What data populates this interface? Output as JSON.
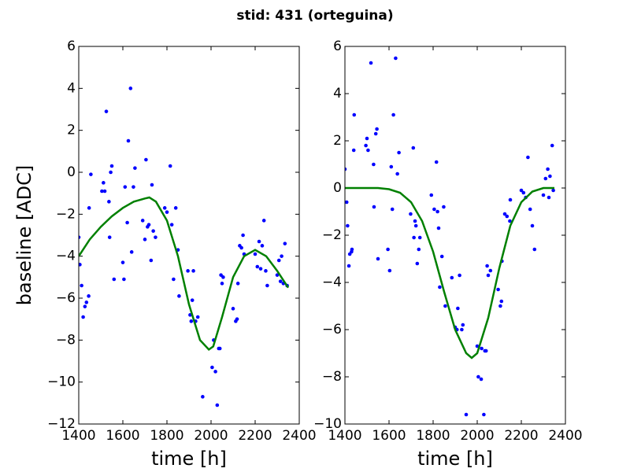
{
  "title": "stid: 431 (orteguina)",
  "chart_data": [
    {
      "type": "scatter",
      "xlabel": "time [h]",
      "ylabel": "baseline [ADC]",
      "xlim": [
        1400,
        2400
      ],
      "ylim": [
        -12,
        6
      ],
      "xticks": [
        1400,
        1600,
        1800,
        2000,
        2200,
        2400
      ],
      "yticks": [
        {
          "value": -12,
          "label": "−12"
        },
        {
          "value": -10,
          "label": "−10"
        },
        {
          "value": -8,
          "label": "−8"
        },
        {
          "value": -6,
          "label": "−6"
        },
        {
          "value": -4,
          "label": "−4"
        },
        {
          "value": -2,
          "label": "−2"
        },
        0,
        2,
        4,
        6
      ],
      "series": [
        {
          "type": "scatter",
          "color": "#0000ff",
          "x": [
            1400,
            1405,
            1413,
            1420,
            1428,
            1435,
            1445,
            1447,
            1455,
            1505,
            1512,
            1518,
            1525,
            1537,
            1540,
            1545,
            1550,
            1560,
            1600,
            1605,
            1610,
            1620,
            1625,
            1635,
            1640,
            1648,
            1655,
            1690,
            1700,
            1705,
            1712,
            1718,
            1728,
            1732,
            1738,
            1748,
            1790,
            1800,
            1815,
            1822,
            1830,
            1840,
            1850,
            1855,
            1895,
            1905,
            1910,
            1915,
            1920,
            1930,
            1940,
            1962,
            2005,
            2012,
            2020,
            2028,
            2035,
            2040,
            2045,
            2050,
            2055,
            2100,
            2112,
            2118,
            2122,
            2130,
            2138,
            2145,
            2150,
            2200,
            2210,
            2218,
            2225,
            2232,
            2240,
            2248,
            2255,
            2300,
            2308,
            2315,
            2320,
            2328,
            2335,
            2345
          ],
          "values": [
            -3.1,
            -4.4,
            -5.4,
            -6.9,
            -6.4,
            -6.2,
            -5.9,
            -1.7,
            -0.1,
            -0.9,
            -0.5,
            -0.9,
            2.9,
            -1.4,
            -3.1,
            0.0,
            0.3,
            -5.1,
            -4.3,
            -5.1,
            -0.7,
            -2.4,
            1.5,
            4.0,
            -3.8,
            -0.7,
            0.2,
            -2.3,
            -3.2,
            0.6,
            -2.6,
            -2.5,
            -4.2,
            -0.6,
            -2.8,
            -3.1,
            -1.7,
            -1.9,
            0.3,
            -2.5,
            -5.1,
            -1.7,
            -3.7,
            -5.9,
            -4.7,
            -6.8,
            -7.1,
            -6.1,
            -4.7,
            -7.1,
            -6.9,
            -10.7,
            -9.3,
            -8.0,
            -9.5,
            -11.1,
            -8.4,
            -8.4,
            -4.9,
            -5.3,
            -5.0,
            -6.5,
            -7.1,
            -7.0,
            -5.3,
            -3.5,
            -3.6,
            -3.0,
            -3.9,
            -3.9,
            -4.5,
            -3.3,
            -4.6,
            -3.5,
            -2.3,
            -4.7,
            -5.4,
            -4.9,
            -4.2,
            -5.2,
            -4.0,
            -5.3,
            -3.4,
            -5.4
          ]
        },
        {
          "type": "line",
          "color": "#008000",
          "x": [
            1400,
            1450,
            1500,
            1550,
            1600,
            1650,
            1700,
            1720,
            1750,
            1800,
            1850,
            1900,
            1950,
            1990,
            2010,
            2050,
            2100,
            2150,
            2200,
            2250,
            2300,
            2350
          ],
          "values": [
            -4.0,
            -3.2,
            -2.6,
            -2.1,
            -1.7,
            -1.4,
            -1.25,
            -1.2,
            -1.4,
            -2.3,
            -4.0,
            -6.3,
            -8.0,
            -8.45,
            -8.3,
            -6.9,
            -5.0,
            -4.0,
            -3.7,
            -4.0,
            -4.7,
            -5.5
          ]
        }
      ]
    },
    {
      "type": "scatter",
      "xlabel": "time [h]",
      "xlim": [
        1400,
        2400
      ],
      "ylim": [
        -10,
        6
      ],
      "xticks": [
        1400,
        1600,
        1800,
        2000,
        2200,
        2400
      ],
      "yticks": [
        {
          "value": -10,
          "label": "−10"
        },
        {
          "value": -8,
          "label": "−8"
        },
        {
          "value": -6,
          "label": "−6"
        },
        {
          "value": -4,
          "label": "−4"
        },
        {
          "value": -2,
          "label": "−2"
        },
        0,
        2,
        4,
        6
      ],
      "series": [
        {
          "type": "scatter",
          "color": "#0000ff",
          "x": [
            1400,
            1408,
            1412,
            1418,
            1422,
            1430,
            1432,
            1440,
            1442,
            1495,
            1500,
            1505,
            1518,
            1530,
            1532,
            1540,
            1545,
            1550,
            1595,
            1603,
            1610,
            1615,
            1620,
            1630,
            1638,
            1645,
            1698,
            1710,
            1713,
            1718,
            1722,
            1728,
            1735,
            1740,
            1792,
            1805,
            1815,
            1820,
            1825,
            1830,
            1840,
            1848,
            1855,
            1885,
            1900,
            1908,
            1912,
            1920,
            1930,
            1935,
            1950,
            2000,
            2005,
            2018,
            2020,
            2030,
            2035,
            2040,
            2045,
            2050,
            2060,
            2095,
            2105,
            2110,
            2112,
            2125,
            2135,
            2148,
            2150,
            2200,
            2210,
            2220,
            2230,
            2240,
            2250,
            2260,
            2300,
            2310,
            2320,
            2325,
            2330,
            2340,
            2345
          ],
          "values": [
            0.8,
            -0.6,
            -1.6,
            -3.3,
            -2.8,
            -2.7,
            -2.6,
            1.6,
            3.1,
            1.8,
            2.1,
            1.6,
            5.3,
            1.0,
            -0.8,
            2.3,
            2.5,
            -3.0,
            -2.6,
            -3.5,
            0.9,
            -0.9,
            3.1,
            5.5,
            0.6,
            1.5,
            -1.1,
            1.7,
            -2.1,
            -1.4,
            -1.6,
            -3.2,
            -2.6,
            -2.1,
            -0.3,
            -0.9,
            1.1,
            -1.0,
            -1.7,
            -4.2,
            -2.9,
            -0.8,
            -5.0,
            -3.8,
            -5.9,
            -6.0,
            -5.1,
            -3.7,
            -6.0,
            -5.8,
            -9.6,
            -6.7,
            -8.0,
            -8.1,
            -6.8,
            -9.6,
            -6.9,
            -6.9,
            -3.3,
            -3.7,
            -3.5,
            -4.3,
            -5.0,
            -4.8,
            -3.1,
            -1.1,
            -1.2,
            -1.4,
            -0.5,
            -0.1,
            -0.2,
            -0.4,
            1.3,
            -0.9,
            -1.6,
            -2.6,
            -0.3,
            0.4,
            0.8,
            -0.4,
            0.5,
            1.8,
            -0.1
          ]
        },
        {
          "type": "line",
          "color": "#008000",
          "x": [
            1400,
            1550,
            1600,
            1650,
            1700,
            1750,
            1800,
            1850,
            1900,
            1950,
            1975,
            2000,
            2050,
            2100,
            2150,
            2200,
            2250,
            2300,
            2350
          ],
          "values": [
            0,
            0,
            -0.05,
            -0.2,
            -0.6,
            -1.4,
            -2.7,
            -4.4,
            -6.0,
            -7.0,
            -7.2,
            -7.0,
            -5.5,
            -3.4,
            -1.6,
            -0.6,
            -0.15,
            0,
            0
          ]
        }
      ]
    }
  ]
}
